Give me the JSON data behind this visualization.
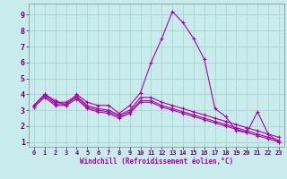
{
  "xlabel": "Windchill (Refroidissement éolien,°C)",
  "background_color": "#c8ecec",
  "grid_color": "#aad4d4",
  "line_color": "#aa00aa",
  "xlim": [
    -0.5,
    23.5
  ],
  "ylim": [
    0.7,
    9.7
  ],
  "yticks": [
    1,
    2,
    3,
    4,
    5,
    6,
    7,
    8,
    9
  ],
  "xticks": [
    0,
    1,
    2,
    3,
    4,
    5,
    6,
    7,
    8,
    9,
    10,
    11,
    12,
    13,
    14,
    15,
    16,
    17,
    18,
    19,
    20,
    21,
    22,
    23
  ],
  "series": [
    [
      3.3,
      4.0,
      3.6,
      3.3,
      4.0,
      3.5,
      3.3,
      3.3,
      2.8,
      3.3,
      4.1,
      6.0,
      7.5,
      9.2,
      8.5,
      7.5,
      6.2,
      3.1,
      2.6,
      1.7,
      1.6,
      2.9,
      1.5,
      1.0
    ],
    [
      3.3,
      4.0,
      3.5,
      3.5,
      3.9,
      3.3,
      3.1,
      3.0,
      2.7,
      3.0,
      3.8,
      3.8,
      3.5,
      3.3,
      3.1,
      2.9,
      2.7,
      2.5,
      2.3,
      2.1,
      1.9,
      1.7,
      1.5,
      1.3
    ],
    [
      3.3,
      3.9,
      3.4,
      3.4,
      3.8,
      3.2,
      3.0,
      2.9,
      2.6,
      2.9,
      3.6,
      3.6,
      3.3,
      3.1,
      2.9,
      2.7,
      2.5,
      2.3,
      2.1,
      1.9,
      1.7,
      1.5,
      1.3,
      1.1
    ],
    [
      3.2,
      3.8,
      3.3,
      3.3,
      3.7,
      3.1,
      2.9,
      2.8,
      2.5,
      2.8,
      3.5,
      3.5,
      3.2,
      3.0,
      2.8,
      2.6,
      2.4,
      2.2,
      2.0,
      1.8,
      1.6,
      1.4,
      1.2,
      1.0
    ]
  ],
  "tick_fontsize_y": 6,
  "tick_fontsize_x": 5,
  "xlabel_fontsize": 5.5
}
